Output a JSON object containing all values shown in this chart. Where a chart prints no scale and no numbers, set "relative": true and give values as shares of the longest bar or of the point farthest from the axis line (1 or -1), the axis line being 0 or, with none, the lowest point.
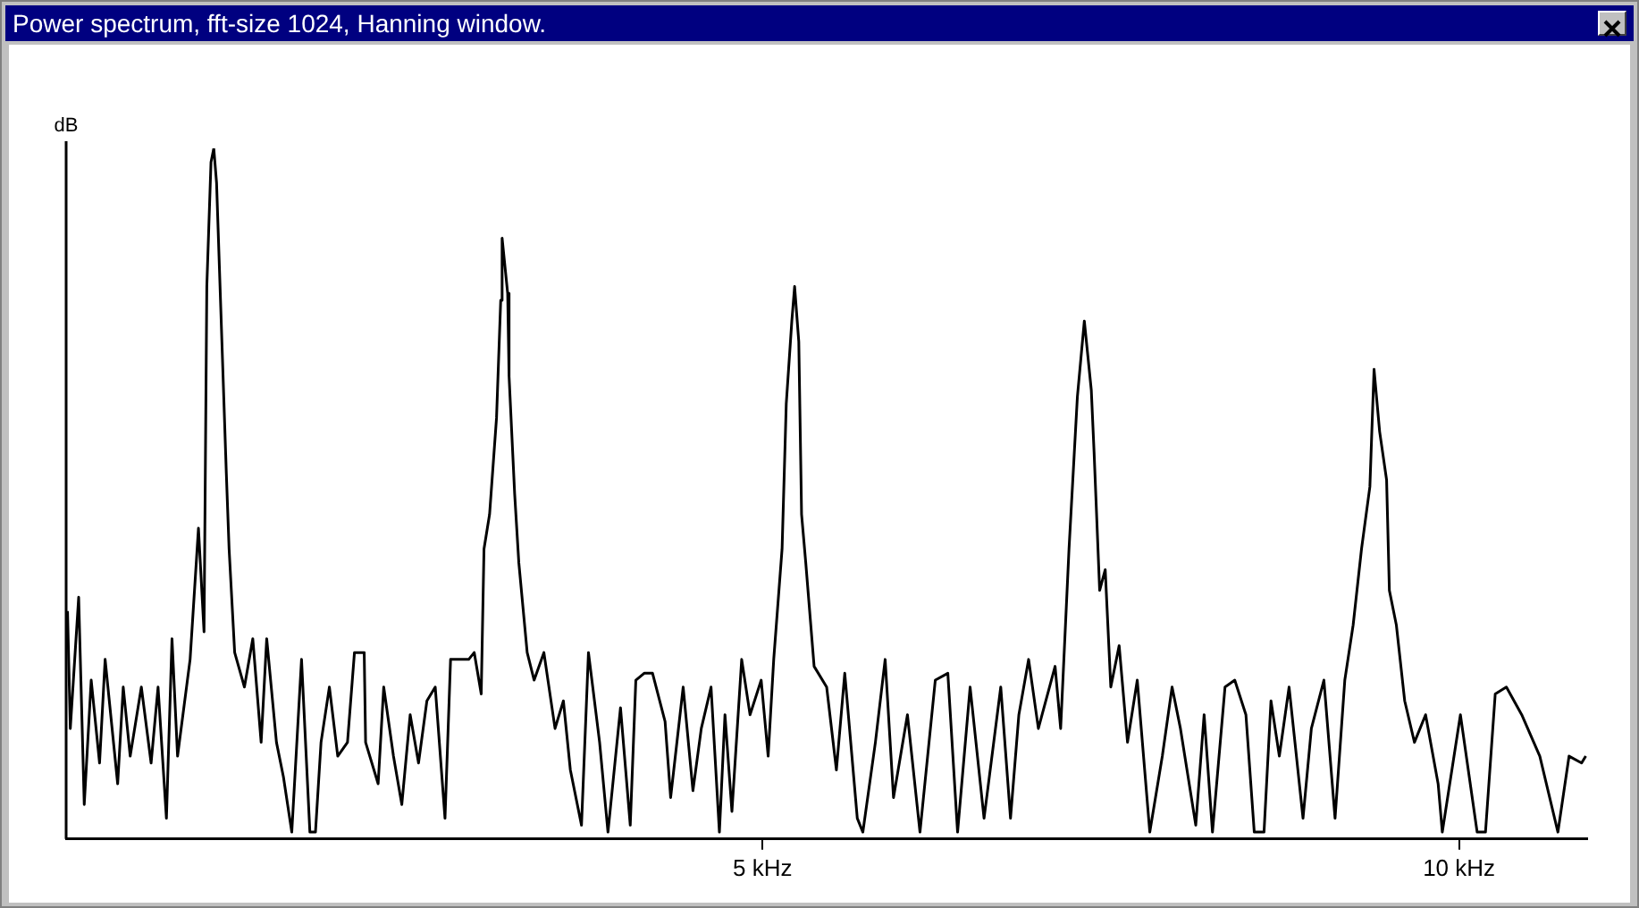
{
  "chart_data": {
    "type": "line",
    "title": "Power spectrum, fft-size 1024, Hanning window.",
    "ylabel": "dB",
    "relative": true,
    "xlim": [
      0,
      10.92
    ],
    "xticks": [
      {
        "value": 5,
        "label": "5 kHz"
      },
      {
        "value": 10,
        "label": "10 kHz"
      }
    ],
    "grid": false,
    "legend": false,
    "marker": "none",
    "line_style": "solid",
    "x": [
      0.01,
      0.03,
      0.09,
      0.13,
      0.18,
      0.24,
      0.28,
      0.37,
      0.41,
      0.46,
      0.54,
      0.61,
      0.66,
      0.72,
      0.76,
      0.8,
      0.89,
      0.95,
      0.99,
      1.01,
      1.04,
      1.06,
      1.08,
      1.11,
      1.15,
      1.17,
      1.21,
      1.28,
      1.34,
      1.4,
      1.44,
      1.51,
      1.56,
      1.62,
      1.69,
      1.75,
      1.79,
      1.83,
      1.89,
      1.95,
      2.02,
      2.07,
      2.14,
      2.15,
      2.24,
      2.28,
      2.35,
      2.41,
      2.47,
      2.53,
      2.59,
      2.65,
      2.72,
      2.76,
      2.89,
      2.93,
      2.98,
      3.0,
      3.04,
      3.09,
      3.12,
      3.13,
      3.17,
      3.18,
      3.22,
      3.25,
      3.31,
      3.36,
      3.43,
      3.51,
      3.57,
      3.62,
      3.7,
      3.75,
      3.83,
      3.89,
      3.98,
      4.05,
      4.09,
      4.15,
      4.21,
      4.3,
      4.34,
      4.43,
      4.5,
      4.56,
      4.63,
      4.69,
      4.73,
      4.78,
      4.85,
      4.91,
      4.99,
      5.04,
      5.08,
      5.14,
      5.17,
      5.21,
      5.23,
      5.26,
      5.28,
      5.31,
      5.37,
      5.46,
      5.53,
      5.59,
      5.68,
      5.72,
      5.81,
      5.88,
      5.94,
      6.04,
      6.13,
      6.24,
      6.33,
      6.4,
      6.49,
      6.59,
      6.71,
      6.78,
      6.84,
      6.91,
      6.98,
      7.1,
      7.14,
      7.2,
      7.26,
      7.31,
      7.36,
      7.38,
      7.42,
      7.46,
      7.5,
      7.56,
      7.62,
      7.69,
      7.78,
      7.87,
      7.94,
      8.0,
      8.11,
      8.17,
      8.23,
      8.32,
      8.39,
      8.47,
      8.53,
      8.6,
      8.65,
      8.71,
      8.78,
      8.88,
      8.94,
      9.03,
      9.11,
      9.18,
      9.24,
      9.3,
      9.36,
      9.39,
      9.43,
      9.48,
      9.5,
      9.55,
      9.61,
      9.68,
      9.76,
      9.85,
      9.88,
      10.01,
      10.13,
      10.19,
      10.26,
      10.34,
      10.45,
      10.58,
      10.71,
      10.79,
      10.88,
      10.91
    ],
    "series": [
      {
        "color": "#000000",
        "values": [
          0.33,
          0.16,
          0.35,
          0.05,
          0.23,
          0.11,
          0.26,
          0.08,
          0.22,
          0.12,
          0.22,
          0.11,
          0.22,
          0.03,
          0.29,
          0.12,
          0.26,
          0.45,
          0.3,
          0.8,
          0.98,
          1.0,
          0.95,
          0.77,
          0.53,
          0.42,
          0.27,
          0.22,
          0.29,
          0.14,
          0.29,
          0.14,
          0.09,
          0.01,
          0.26,
          0.01,
          0.01,
          0.14,
          0.22,
          0.12,
          0.14,
          0.27,
          0.27,
          0.14,
          0.08,
          0.22,
          0.12,
          0.05,
          0.18,
          0.11,
          0.2,
          0.22,
          0.03,
          0.26,
          0.26,
          0.27,
          0.21,
          0.42,
          0.47,
          0.61,
          0.78,
          0.87,
          0.79,
          0.67,
          0.5,
          0.4,
          0.27,
          0.23,
          0.27,
          0.16,
          0.2,
          0.1,
          0.02,
          0.27,
          0.14,
          0.01,
          0.19,
          0.02,
          0.23,
          0.24,
          0.24,
          0.17,
          0.06,
          0.22,
          0.07,
          0.16,
          0.22,
          0.01,
          0.18,
          0.04,
          0.26,
          0.18,
          0.23,
          0.12,
          0.26,
          0.42,
          0.63,
          0.75,
          0.8,
          0.72,
          0.47,
          0.4,
          0.25,
          0.22,
          0.1,
          0.24,
          0.03,
          0.01,
          0.14,
          0.26,
          0.06,
          0.18,
          0.01,
          0.23,
          0.24,
          0.01,
          0.22,
          0.03,
          0.22,
          0.03,
          0.18,
          0.26,
          0.16,
          0.25,
          0.16,
          0.42,
          0.64,
          0.75,
          0.65,
          0.56,
          0.36,
          0.39,
          0.22,
          0.28,
          0.14,
          0.23,
          0.01,
          0.12,
          0.22,
          0.16,
          0.02,
          0.18,
          0.01,
          0.22,
          0.23,
          0.18,
          0.01,
          0.01,
          0.2,
          0.12,
          0.22,
          0.03,
          0.16,
          0.23,
          0.03,
          0.23,
          0.31,
          0.42,
          0.51,
          0.68,
          0.59,
          0.52,
          0.36,
          0.31,
          0.2,
          0.14,
          0.18,
          0.08,
          0.01,
          0.18,
          0.01,
          0.01,
          0.21,
          0.22,
          0.18,
          0.12,
          0.01,
          0.12,
          0.11,
          0.12
        ]
      }
    ]
  }
}
